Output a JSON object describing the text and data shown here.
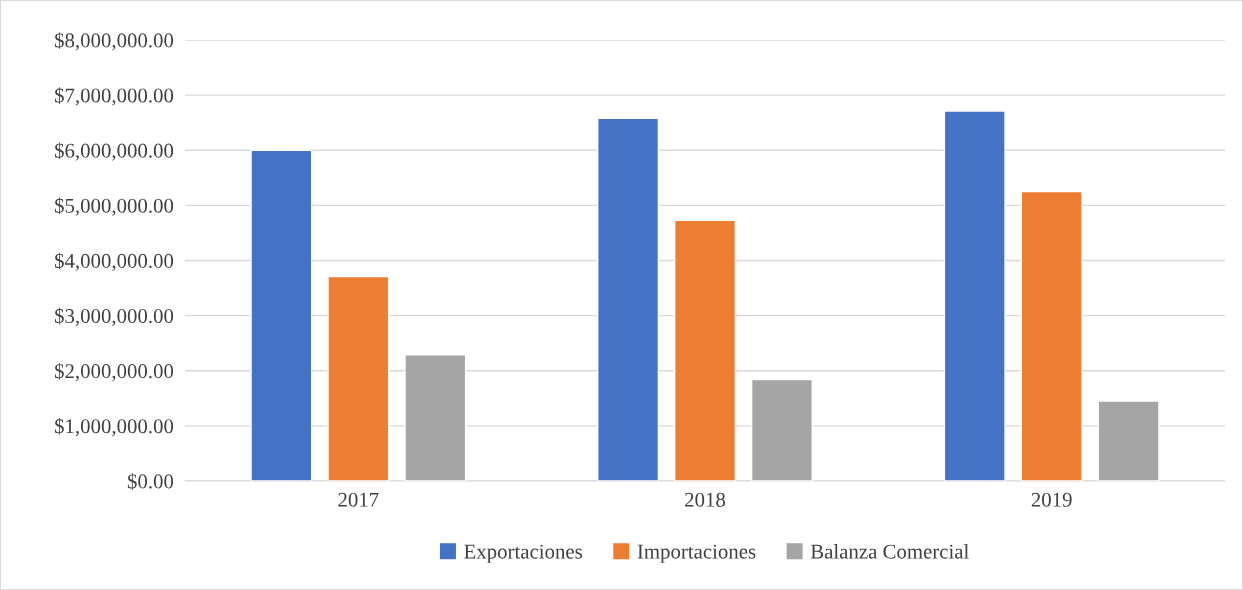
{
  "chart_data": {
    "type": "bar",
    "categories": [
      "2017",
      "2018",
      "2019"
    ],
    "series": [
      {
        "name": "Exportaciones",
        "color": "#4472c4",
        "values": [
          6000000,
          6580000,
          6710000
        ]
      },
      {
        "name": "Importaciones",
        "color": "#ed7d31",
        "values": [
          3710000,
          4730000,
          5250000
        ]
      },
      {
        "name": "Balanza Comercial",
        "color": "#a5a5a5",
        "values": [
          2290000,
          1840000,
          1450000
        ]
      }
    ],
    "ylim": [
      0,
      8000000
    ],
    "yticks": [
      {
        "value": 0,
        "label": "$0.00"
      },
      {
        "value": 1000000,
        "label": "$1,000,000.00"
      },
      {
        "value": 2000000,
        "label": "$2,000,000.00"
      },
      {
        "value": 3000000,
        "label": "$3,000,000.00"
      },
      {
        "value": 4000000,
        "label": "$4,000,000.00"
      },
      {
        "value": 5000000,
        "label": "$5,000,000.00"
      },
      {
        "value": 6000000,
        "label": "$6,000,000.00"
      },
      {
        "value": 7000000,
        "label": "$7,000,000.00"
      },
      {
        "value": 8000000,
        "label": "$8,000,000.00"
      }
    ],
    "grid": "y",
    "legend": "bottom"
  }
}
